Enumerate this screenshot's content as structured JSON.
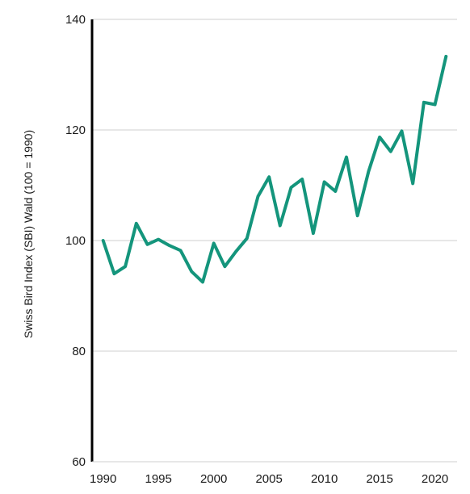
{
  "chart_data": {
    "type": "line",
    "title": "",
    "xlabel": "",
    "ylabel": "Swiss Bird Index (SBI) Wald (100 = 1990)",
    "xlim": [
      1989,
      2022
    ],
    "ylim": [
      60,
      140
    ],
    "x_ticks": [
      1990,
      1995,
      2000,
      2005,
      2010,
      2015,
      2020
    ],
    "y_ticks": [
      60,
      80,
      100,
      120,
      140
    ],
    "grid": "horizontal",
    "legend": "none",
    "series": [
      {
        "color": "#14957c",
        "x": [
          1990,
          1991,
          1992,
          1993,
          1994,
          1995,
          1996,
          1997,
          1998,
          1999,
          2000,
          2001,
          2002,
          2003,
          2004,
          2005,
          2006,
          2007,
          2008,
          2009,
          2010,
          2011,
          2012,
          2013,
          2014,
          2015,
          2016,
          2017,
          2018,
          2019,
          2020,
          2021
        ],
        "y": [
          100.0,
          94.0,
          95.3,
          103.1,
          99.3,
          100.2,
          99.1,
          98.2,
          94.4,
          92.5,
          99.5,
          95.3,
          98.0,
          100.4,
          108.0,
          111.5,
          102.7,
          109.6,
          111.1,
          101.3,
          110.6,
          108.9,
          115.1,
          104.5,
          112.5,
          118.7,
          116.1,
          119.8,
          110.3,
          125.0,
          124.6,
          133.3
        ]
      }
    ]
  }
}
